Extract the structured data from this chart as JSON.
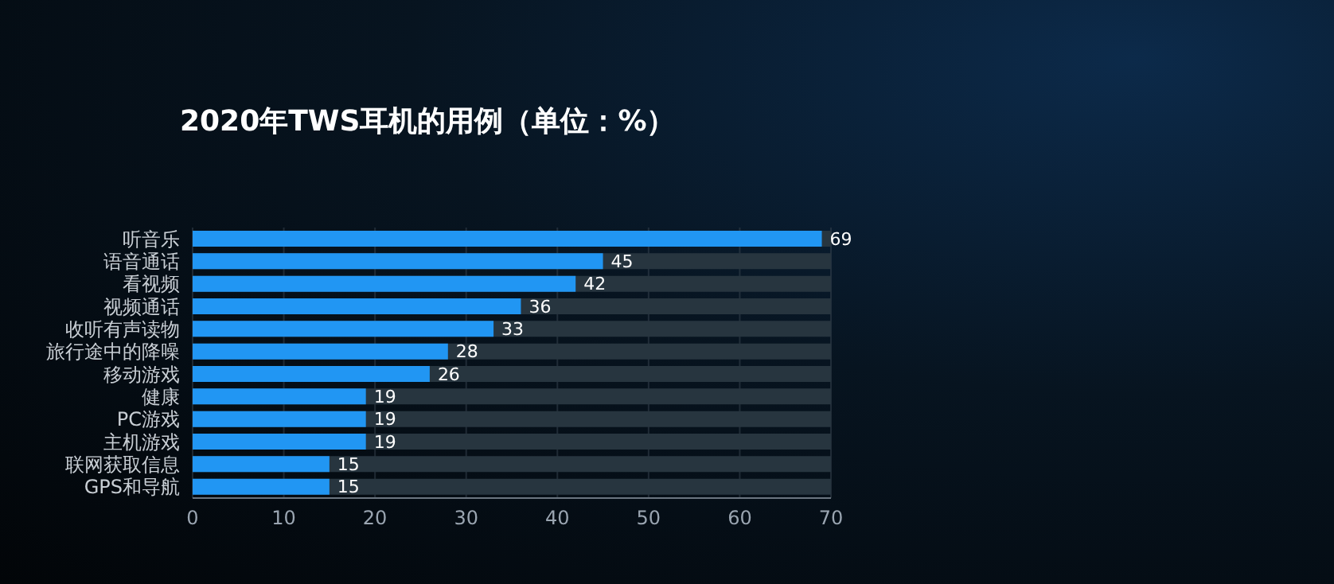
{
  "chart_data": {
    "type": "bar",
    "orientation": "horizontal",
    "title": "2020年TWS耳机的用例（单位：%）",
    "categories": [
      "听音乐",
      "语音通话",
      "看视频",
      "视频通话",
      "收听有声读物",
      "旅行途中的降噪",
      "移动游戏",
      "健康",
      "PC游戏",
      "主机游戏",
      "联网获取信息",
      "GPS和导航"
    ],
    "values": [
      69,
      45,
      42,
      36,
      33,
      28,
      26,
      19,
      19,
      19,
      15,
      15
    ],
    "color": "#2196f3",
    "data_labels": true,
    "xlim": [
      0,
      70
    ],
    "xticks": [
      0,
      10,
      20,
      30,
      40,
      50,
      60,
      70
    ],
    "grid": "x"
  }
}
